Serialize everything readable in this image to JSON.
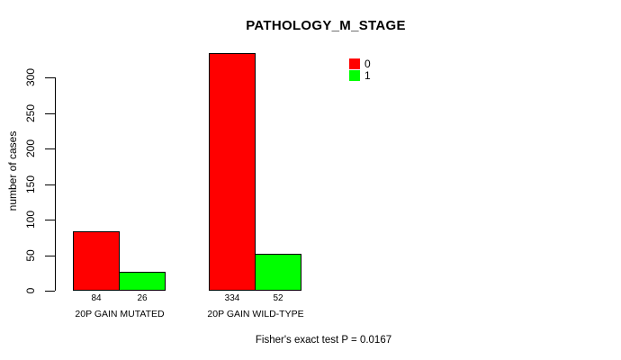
{
  "figure": {
    "background_color": "#ffffff",
    "text_color": "#000000"
  },
  "chart_data": {
    "type": "bar",
    "title": "PATHOLOGY_M_STAGE",
    "xlabel": "",
    "ylabel": "number of cases",
    "categories": [
      "20P GAIN MUTATED",
      "20P GAIN WILD-TYPE"
    ],
    "series": [
      {
        "name": "0",
        "color": "#ff0000",
        "values": [
          84,
          334
        ]
      },
      {
        "name": "1",
        "color": "#00ff00",
        "values": [
          26,
          52
        ]
      }
    ],
    "bar_value_labels": [
      "84",
      "26",
      "334",
      "52"
    ],
    "yticks": [
      0,
      50,
      100,
      150,
      200,
      250,
      300
    ],
    "ylim": [
      0,
      340
    ],
    "grid": false,
    "bar_border_color": "#000000",
    "legend_position": "upper-right",
    "legend_entries": [
      {
        "label": "0",
        "color": "#ff0000"
      },
      {
        "label": "1",
        "color": "#00ff00"
      }
    ],
    "annotation": "Fisher's exact test P = 0.0167"
  }
}
